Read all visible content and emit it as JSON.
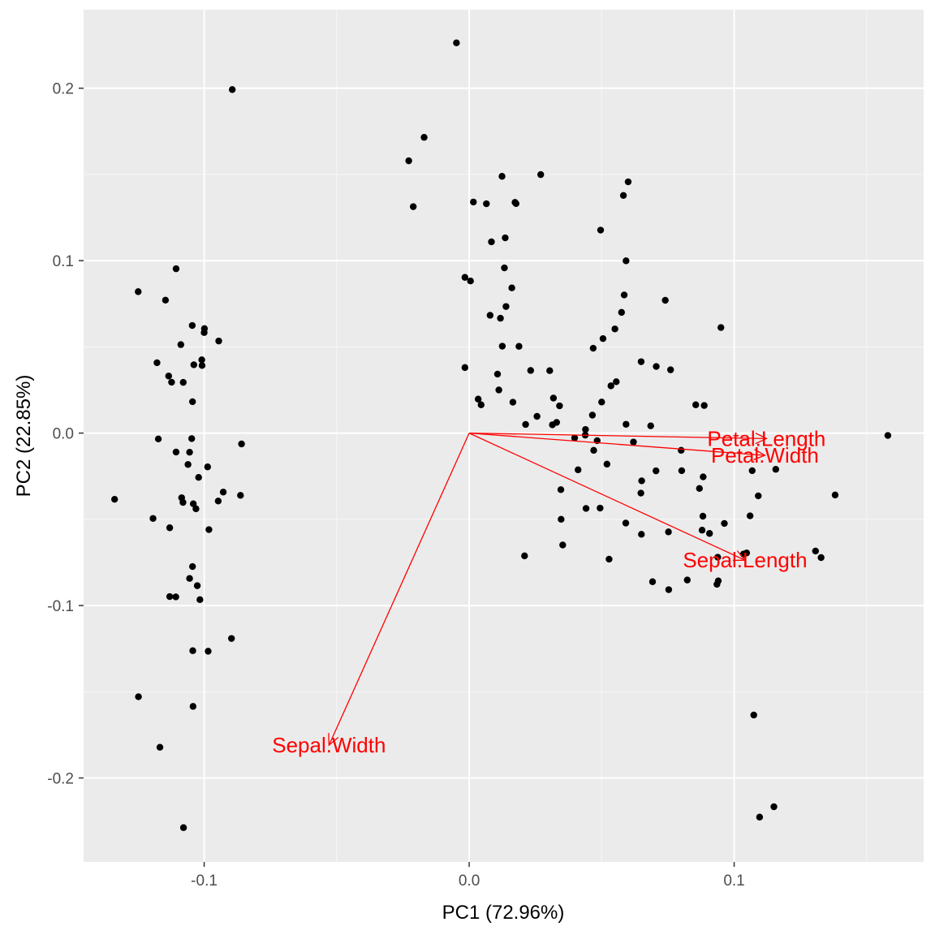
{
  "chart_data": {
    "type": "scatter",
    "title": "",
    "xlabel": "PC1 (72.96%)",
    "ylabel": "PC2 (22.85%)",
    "xlim": [
      -0.1455,
      0.1715
    ],
    "ylim": [
      -0.2487,
      0.2455
    ],
    "xticks": [
      {
        "value": -0.1,
        "label": "-0.1"
      },
      {
        "value": 0.0,
        "label": "0.0"
      },
      {
        "value": 0.1,
        "label": "0.1"
      }
    ],
    "yticks": [
      {
        "value": -0.2,
        "label": "-0.2"
      },
      {
        "value": -0.1,
        "label": "-0.1"
      },
      {
        "value": 0.0,
        "label": "0.0"
      },
      {
        "value": 0.1,
        "label": "0.1"
      },
      {
        "value": 0.2,
        "label": "0.2"
      }
    ],
    "grid": true,
    "background": "#ebebeb",
    "point_color": "#000000",
    "loading_color": "#ff0000",
    "points": [
      [
        -0.0894,
        0.1992
      ],
      [
        -0.0048,
        0.2263
      ],
      [
        -0.1106,
        0.0953
      ],
      [
        -0.1249,
        0.082
      ],
      [
        -0.1146,
        0.0771
      ],
      [
        -0.1045,
        0.0624
      ],
      [
        -0.0999,
        0.0606
      ],
      [
        -0.1,
        0.0583
      ],
      [
        -0.1088,
        0.0513
      ],
      [
        -0.0945,
        0.0534
      ],
      [
        -0.1009,
        0.0425
      ],
      [
        -0.1178,
        0.0408
      ],
      [
        -0.1039,
        0.0396
      ],
      [
        -0.1008,
        0.0392
      ],
      [
        -0.1134,
        0.0331
      ],
      [
        -0.1123,
        0.0295
      ],
      [
        -0.1079,
        0.0294
      ],
      [
        -0.1044,
        0.0182
      ],
      [
        -0.1173,
        -0.0034
      ],
      [
        -0.1047,
        -0.0032
      ],
      [
        -0.0859,
        -0.0063
      ],
      [
        -0.1106,
        -0.011
      ],
      [
        -0.1055,
        -0.0111
      ],
      [
        -0.1061,
        -0.0182
      ],
      [
        -0.0987,
        -0.0196
      ],
      [
        -0.1021,
        -0.0257
      ],
      [
        -0.0928,
        -0.0342
      ],
      [
        -0.0863,
        -0.0361
      ],
      [
        -0.1085,
        -0.0375
      ],
      [
        -0.108,
        -0.0402
      ],
      [
        -0.1041,
        -0.041
      ],
      [
        -0.1031,
        -0.0439
      ],
      [
        -0.0947,
        -0.0394
      ],
      [
        -0.1338,
        -0.0384
      ],
      [
        -0.1193,
        -0.0495
      ],
      [
        -0.113,
        -0.0549
      ],
      [
        -0.0982,
        -0.056
      ],
      [
        -0.1044,
        -0.0774
      ],
      [
        -0.1055,
        -0.0843
      ],
      [
        -0.1026,
        -0.0885
      ],
      [
        -0.113,
        -0.0948
      ],
      [
        -0.1107,
        -0.095
      ],
      [
        -0.1016,
        -0.0966
      ],
      [
        -0.0897,
        -0.1191
      ],
      [
        -0.1043,
        -0.1262
      ],
      [
        -0.0985,
        -0.1265
      ],
      [
        -0.1248,
        -0.1529
      ],
      [
        -0.1042,
        -0.1585
      ],
      [
        -0.1167,
        -0.1822
      ],
      [
        -0.1078,
        -0.2288
      ],
      [
        -0.0228,
        0.1579
      ],
      [
        -0.017,
        0.1715
      ],
      [
        -0.0211,
        0.1313
      ],
      [
        0.0173,
        0.1338
      ],
      [
        0.0124,
        0.1489
      ],
      [
        0.027,
        0.1499
      ],
      [
        0.0016,
        0.134
      ],
      [
        0.0065,
        0.133
      ],
      [
        0.0177,
        0.1331
      ],
      [
        0.0084,
        0.1109
      ],
      [
        0.0136,
        0.1132
      ],
      [
        0.0133,
        0.0958
      ],
      [
        0.0161,
        0.0842
      ],
      [
        0.0139,
        0.0734
      ],
      [
        0.0079,
        0.0683
      ],
      [
        0.0118,
        0.0666
      ],
      [
        -0.0016,
        0.0903
      ],
      [
        0.0005,
        0.0882
      ],
      [
        0.0188,
        0.0503
      ],
      [
        0.0125,
        0.0504
      ],
      [
        0.0107,
        0.0342
      ],
      [
        0.0232,
        0.0363
      ],
      [
        0.0304,
        0.0362
      ],
      [
        0.0112,
        0.025
      ],
      [
        0.0165,
        0.0179
      ],
      [
        0.0318,
        0.0203
      ],
      [
        0.0034,
        0.0197
      ],
      [
        0.0045,
        0.0164
      ],
      [
        0.0213,
        0.005
      ],
      [
        0.033,
        0.0062
      ],
      [
        -0.0016,
        0.038
      ],
      [
        0.0439,
        0.0021
      ],
      [
        0.0438,
        -0.0012
      ],
      [
        0.0483,
        -0.0044
      ],
      [
        0.0314,
        0.0048
      ],
      [
        0.0256,
        0.0097
      ],
      [
        0.0341,
        0.0158
      ],
      [
        0.05,
        0.018
      ],
      [
        0.0535,
        0.0274
      ],
      [
        0.0555,
        0.0298
      ],
      [
        0.0468,
        0.0492
      ],
      [
        0.0505,
        0.0548
      ],
      [
        0.055,
        0.0604
      ],
      [
        0.0575,
        0.07
      ],
      [
        0.0585,
        0.0801
      ],
      [
        0.0592,
        0.0999
      ],
      [
        0.0582,
        0.1378
      ],
      [
        0.06,
        0.1457
      ],
      [
        0.0496,
        0.1177
      ],
      [
        0.0592,
        0.0051
      ],
      [
        0.0649,
        0.0414
      ],
      [
        0.0706,
        0.0386
      ],
      [
        0.076,
        0.0367
      ],
      [
        0.074,
        0.077
      ],
      [
        0.0685,
        0.0042
      ],
      [
        0.0855,
        0.0164
      ],
      [
        0.0887,
        0.016
      ],
      [
        0.095,
        0.0612
      ],
      [
        0.0411,
        -0.0213
      ],
      [
        0.0441,
        -0.0437
      ],
      [
        0.0494,
        -0.0435
      ],
      [
        0.0346,
        -0.0328
      ],
      [
        0.0347,
        -0.05
      ],
      [
        0.0353,
        -0.0649
      ],
      [
        0.0209,
        -0.0712
      ],
      [
        0.0528,
        -0.0731
      ],
      [
        0.0591,
        -0.0522
      ],
      [
        0.065,
        -0.0587
      ],
      [
        0.0648,
        -0.0348
      ],
      [
        0.0651,
        -0.0277
      ],
      [
        0.0705,
        -0.0219
      ],
      [
        0.0752,
        -0.0573
      ],
      [
        0.0692,
        -0.0862
      ],
      [
        0.0753,
        -0.0908
      ],
      [
        0.0802,
        -0.0218
      ],
      [
        0.0869,
        -0.0321
      ],
      [
        0.0883,
        -0.0254
      ],
      [
        0.0882,
        -0.0482
      ],
      [
        0.0879,
        -0.0563
      ],
      [
        0.0907,
        -0.0582
      ],
      [
        0.0963,
        -0.0524
      ],
      [
        0.0823,
        -0.0852
      ],
      [
        0.094,
        -0.0857
      ],
      [
        0.0935,
        -0.0877
      ],
      [
        0.0938,
        -0.072
      ],
      [
        0.1035,
        -0.0702
      ],
      [
        0.1047,
        -0.0695
      ],
      [
        0.106,
        -0.048
      ],
      [
        0.1068,
        -0.0218
      ],
      [
        0.1091,
        -0.0364
      ],
      [
        0.1157,
        -0.021
      ],
      [
        0.1307,
        -0.0684
      ],
      [
        0.1328,
        -0.0722
      ],
      [
        0.1381,
        -0.0359
      ],
      [
        0.158,
        -0.0014
      ],
      [
        0.1074,
        -0.1635
      ],
      [
        0.1096,
        -0.2227
      ],
      [
        0.115,
        -0.2167
      ],
      [
        0.0465,
        0.0104
      ],
      [
        0.0398,
        -0.0028
      ],
      [
        0.062,
        -0.0052
      ],
      [
        0.047,
        -0.01
      ],
      [
        0.052,
        -0.018
      ],
      [
        0.08,
        -0.01
      ]
    ],
    "loadings": [
      {
        "name": "Petal.Length",
        "x": 0.1122,
        "y": -0.0032
      },
      {
        "name": "Petal.Width",
        "x": 0.1116,
        "y": -0.0129
      },
      {
        "name": "Sepal.Length",
        "x": 0.1041,
        "y": -0.0737
      },
      {
        "name": "Sepal.Width",
        "x": -0.0529,
        "y": -0.181
      }
    ]
  }
}
